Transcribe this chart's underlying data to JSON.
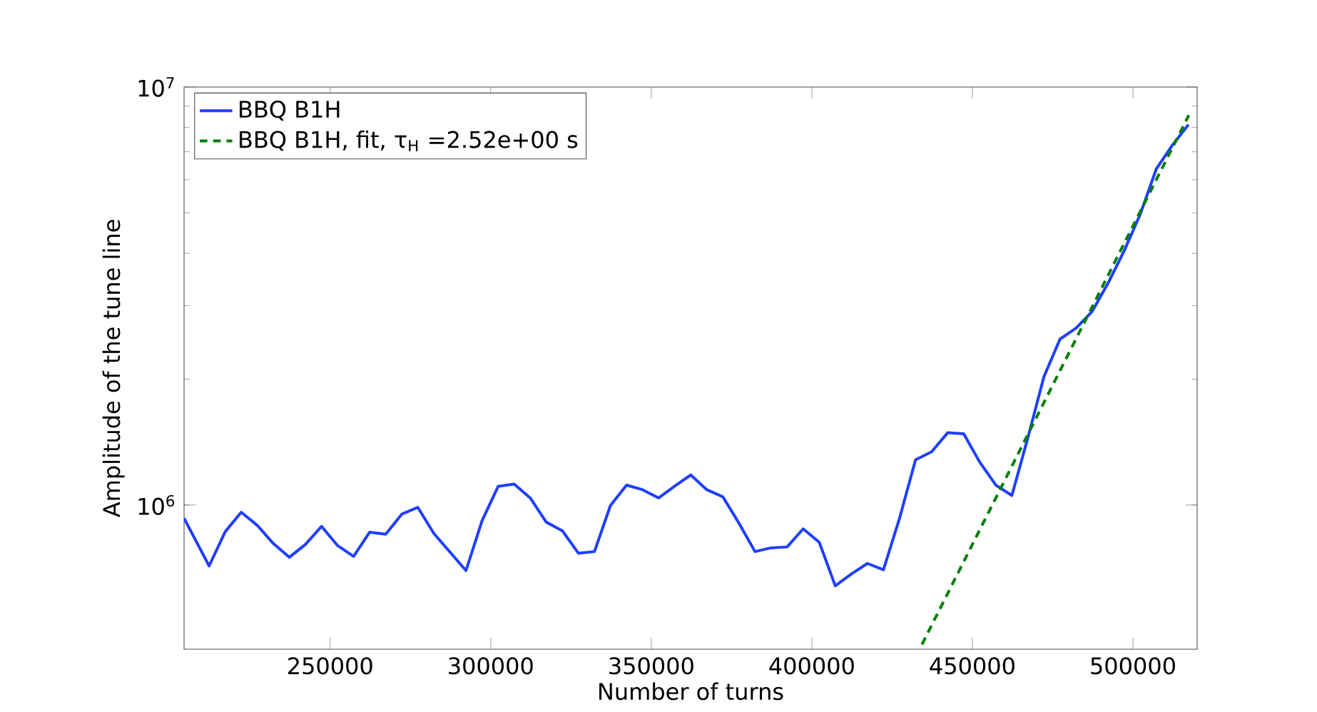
{
  "chart_data": {
    "type": "line",
    "xlabel": "Number of turns",
    "ylabel": "Amplitude of the tune line",
    "log": "y",
    "xlim": [
      204500,
      520000
    ],
    "ylim": [
      452000,
      10000000
    ],
    "xticks": [
      250000,
      300000,
      350000,
      400000,
      450000,
      500000
    ],
    "yticks": [
      {
        "value": 1000000,
        "label": "10$^{6}$"
      },
      {
        "value": 10000000,
        "label": "10$^{7}$"
      }
    ],
    "grid": false,
    "legend": "top left",
    "marker": "none",
    "series": [
      {
        "name": "BBQ B1H",
        "color": "#1f3fff",
        "line_style": "solid",
        "x": [
          204500,
          212300,
          217300,
          222300,
          227300,
          232300,
          237300,
          242300,
          247300,
          252300,
          257300,
          262300,
          267300,
          272300,
          277300,
          282300,
          287300,
          292300,
          297300,
          302300,
          307300,
          312300,
          317300,
          322300,
          327300,
          332300,
          337300,
          342300,
          347300,
          352300,
          357300,
          362300,
          367300,
          372300,
          377300,
          382300,
          387300,
          392300,
          397300,
          402300,
          407300,
          412300,
          417300,
          422300,
          427300,
          432300,
          437300,
          442300,
          447300,
          452300,
          457300,
          462300,
          467300,
          472300,
          477300,
          482300,
          487300,
          492300,
          497300,
          502300,
          507300,
          512300,
          517300
        ],
        "values": [
          930000,
          715000,
          863000,
          961000,
          894000,
          809000,
          750000,
          805000,
          889000,
          800000,
          754000,
          861000,
          852000,
          951000,
          987000,
          855000,
          772000,
          697000,
          917000,
          1108000,
          1122000,
          1040000,
          910000,
          868000,
          767000,
          774000,
          998000,
          1116000,
          1088000,
          1040000,
          1110000,
          1180000,
          1088000,
          1046000,
          905000,
          774000,
          790000,
          794000,
          877000,
          815000,
          641000,
          684000,
          725000,
          700000,
          929000,
          1283000,
          1341000,
          1489000,
          1481000,
          1266000,
          1116000,
          1054000,
          1450000,
          2029000,
          2495000,
          2650000,
          2905000,
          3400000,
          4060000,
          4968000,
          6375000,
          7260000,
          8130000
        ]
      },
      {
        "name": "BBQ B1H, fit, τ$_{H}$ =2.52e+00 s",
        "color": "#008000",
        "line_style": "dashed",
        "x": [
          434300,
          517400
        ],
        "values": [
          464000,
          8560000
        ]
      }
    ]
  }
}
